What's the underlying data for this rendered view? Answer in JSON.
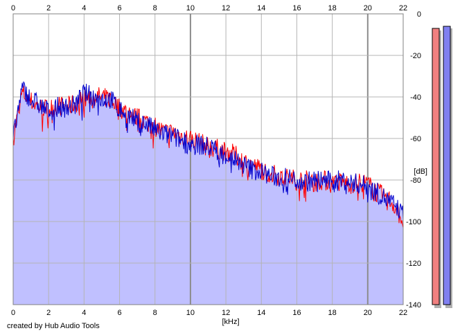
{
  "footer": {
    "credit": "created by Hub Audio Tools"
  },
  "colors": {
    "background": "#ffffff",
    "plot_bg": "#ffffff",
    "grid": "#b4b4b4",
    "major_grid": "#8c8c8c",
    "fill": "#c0c0ff",
    "left_channel": "#ff0000",
    "right_channel": "#0000cc",
    "meter_left": "#f08080",
    "meter_right": "#8080f0"
  },
  "meters": [
    {
      "name": "left",
      "level_db": -7
    },
    {
      "name": "right",
      "level_db": -6
    }
  ],
  "chart_data": {
    "type": "line",
    "title": "",
    "xlabel": "[kHz]",
    "ylabel": "[dB]",
    "xlim": [
      0,
      22
    ],
    "ylim": [
      -140,
      0
    ],
    "x_ticks": [
      0,
      2,
      4,
      6,
      8,
      10,
      12,
      14,
      16,
      18,
      20,
      22
    ],
    "x_tick_labels": [
      "0",
      "2",
      "4",
      "6",
      "8",
      "10",
      "12",
      "14",
      "16",
      "18",
      "20",
      "22"
    ],
    "y_ticks": [
      0,
      -20,
      -40,
      -60,
      -80,
      -100,
      -120,
      -140
    ],
    "y_tick_labels": [
      "0",
      "-20",
      "-40",
      "-60",
      "-80",
      "-100",
      "-120",
      "-140"
    ],
    "grid": true,
    "x_axis_top_labels": true,
    "series": [
      {
        "channel": "left",
        "color": "#ff0000",
        "x": [
          0,
          0.5,
          1,
          1.5,
          2,
          2.5,
          3,
          3.5,
          4,
          4.5,
          5,
          5.5,
          6,
          6.5,
          7,
          7.5,
          8,
          8.5,
          9,
          9.5,
          10,
          10.5,
          11,
          11.5,
          12,
          12.5,
          13,
          13.5,
          14,
          14.5,
          15,
          15.5,
          16,
          16.5,
          17,
          17.5,
          18,
          18.5,
          19,
          19.5,
          20,
          20.5,
          21,
          21.5,
          22
        ],
        "values": [
          -60,
          -38,
          -42,
          -45,
          -46,
          -44,
          -45,
          -43,
          -41,
          -40,
          -40,
          -41,
          -45,
          -48,
          -50,
          -52,
          -54,
          -57,
          -57,
          -59,
          -60,
          -62,
          -64,
          -65,
          -66,
          -68,
          -71,
          -73,
          -75,
          -77,
          -78,
          -79,
          -80,
          -80,
          -81,
          -80,
          -82,
          -81,
          -82,
          -81,
          -82,
          -86,
          -88,
          -92,
          -100
        ]
      },
      {
        "channel": "right",
        "color": "#0000cc",
        "x": [
          0,
          0.5,
          1,
          1.5,
          2,
          2.5,
          3,
          3.5,
          4,
          4.5,
          5,
          5.5,
          6,
          6.5,
          7,
          7.5,
          8,
          8.5,
          9,
          9.5,
          10,
          10.5,
          11,
          11.5,
          12,
          12.5,
          13,
          13.5,
          14,
          14.5,
          15,
          15.5,
          16,
          16.5,
          17,
          17.5,
          18,
          18.5,
          19,
          19.5,
          20,
          20.5,
          21,
          21.5,
          22
        ],
        "values": [
          -60,
          -36,
          -41,
          -44,
          -47,
          -45,
          -45,
          -44,
          -38,
          -40,
          -41,
          -41,
          -46,
          -49,
          -52,
          -53,
          -56,
          -58,
          -59,
          -61,
          -63,
          -63,
          -64,
          -66,
          -68,
          -70,
          -73,
          -75,
          -76,
          -78,
          -79,
          -79,
          -80,
          -81,
          -80,
          -80,
          -81,
          -80,
          -81,
          -82,
          -83,
          -86,
          -89,
          -92,
          -97
        ]
      }
    ]
  }
}
